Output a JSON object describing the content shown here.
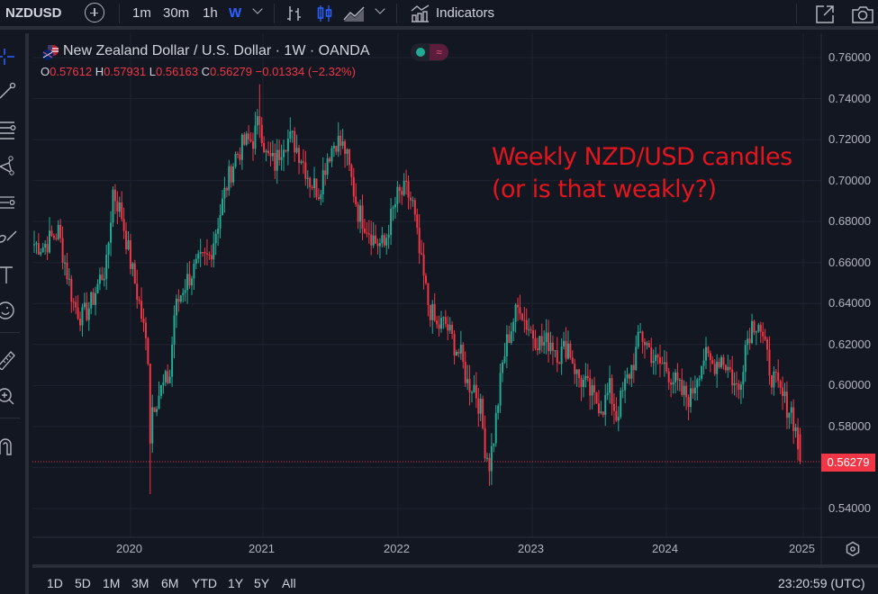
{
  "toolbar": {
    "symbol": "NZDUSD",
    "timeframes": [
      "1m",
      "30m",
      "1h",
      "W"
    ],
    "active_timeframe": "W",
    "indicators_label": "Indicators",
    "icons": [
      "search-icon",
      "add-symbol-icon",
      "bar-chart-icon",
      "candles-icon",
      "area-chart-icon",
      "indicators-icon",
      "fullscreen-icon",
      "camera-icon"
    ]
  },
  "left_tools": [
    "crosshair-icon",
    "trendline-icon",
    "fib-lines-icon",
    "pattern-icon",
    "prediction-icon",
    "brush-icon",
    "text-icon",
    "emoji-icon",
    "ruler-icon",
    "zoom-in-icon",
    "magnet-icon"
  ],
  "legend": {
    "title": "New Zealand Dollar / U.S. Dollar · 1W · OANDA",
    "o_label": "O",
    "o": "0.57612",
    "h_label": "H",
    "h": "0.57931",
    "l_label": "L",
    "l": "0.56163",
    "c_label": "C",
    "c": "0.56279",
    "change": "−0.01334 (−2.32%)",
    "badge_symbol": "≈"
  },
  "annotation": {
    "line1": "Weekly NZD/USD candles",
    "line2": "(or is that weakly?)",
    "color": "#e3161e"
  },
  "price_tag": "0.56279",
  "bottom": {
    "ranges": [
      "1D",
      "5D",
      "1M",
      "3M",
      "6M",
      "YTD",
      "1Y",
      "5Y",
      "All"
    ],
    "clock": "23:20:59 (UTC)"
  },
  "colors": {
    "background": "#131722",
    "up": "#22ab94",
    "down": "#f23645",
    "grid": "#1f2330",
    "text": "#b2b5be"
  },
  "chart_data": {
    "type": "candlestick",
    "title": "New Zealand Dollar / U.S. Dollar · 1W · OANDA",
    "xlabel": "",
    "ylabel": "",
    "ylim": [
      0.53,
      0.765
    ],
    "y_ticks": [
      "0.76000",
      "0.74000",
      "0.72000",
      "0.70000",
      "0.68000",
      "0.66000",
      "0.64000",
      "0.62000",
      "0.60000",
      "0.58000",
      "0.56279",
      "0.54000"
    ],
    "x_ticks": [
      "2020",
      "2021",
      "2022",
      "2023",
      "2024",
      "2025"
    ],
    "last_price": 0.56279,
    "grid": true,
    "waypoints": [
      [
        0,
        0.669
      ],
      [
        4,
        0.668
      ],
      [
        8,
        0.672
      ],
      [
        11,
        0.675
      ],
      [
        14,
        0.66
      ],
      [
        18,
        0.64
      ],
      [
        22,
        0.633
      ],
      [
        26,
        0.64
      ],
      [
        30,
        0.652
      ],
      [
        33,
        0.658
      ],
      [
        36,
        0.695
      ],
      [
        40,
        0.683
      ],
      [
        44,
        0.66
      ],
      [
        48,
        0.64
      ],
      [
        52,
        0.615
      ],
      [
        53,
        0.575
      ],
      [
        54,
        0.59
      ],
      [
        58,
        0.598
      ],
      [
        62,
        0.605
      ],
      [
        64,
        0.635
      ],
      [
        68,
        0.648
      ],
      [
        72,
        0.655
      ],
      [
        76,
        0.66
      ],
      [
        80,
        0.663
      ],
      [
        84,
        0.68
      ],
      [
        88,
        0.698
      ],
      [
        92,
        0.712
      ],
      [
        96,
        0.718
      ],
      [
        100,
        0.72
      ],
      [
        103,
        0.73
      ],
      [
        106,
        0.712
      ],
      [
        110,
        0.708
      ],
      [
        114,
        0.72
      ],
      [
        118,
        0.72
      ],
      [
        122,
        0.712
      ],
      [
        126,
        0.7
      ],
      [
        130,
        0.695
      ],
      [
        134,
        0.712
      ],
      [
        138,
        0.72
      ],
      [
        142,
        0.715
      ],
      [
        145,
        0.7
      ],
      [
        148,
        0.685
      ],
      [
        152,
        0.678
      ],
      [
        156,
        0.67
      ],
      [
        160,
        0.668
      ],
      [
        162,
        0.678
      ],
      [
        166,
        0.692
      ],
      [
        170,
        0.695
      ],
      [
        173,
        0.688
      ],
      [
        176,
        0.664
      ],
      [
        180,
        0.64
      ],
      [
        184,
        0.628
      ],
      [
        186,
        0.63
      ],
      [
        188,
        0.63
      ],
      [
        192,
        0.62
      ],
      [
        195,
        0.614
      ],
      [
        198,
        0.601
      ],
      [
        201,
        0.6
      ],
      [
        204,
        0.588
      ],
      [
        206,
        0.57
      ],
      [
        208,
        0.562
      ],
      [
        210,
        0.575
      ],
      [
        214,
        0.61
      ],
      [
        216,
        0.621
      ],
      [
        219,
        0.632
      ],
      [
        222,
        0.64
      ],
      [
        224,
        0.632
      ],
      [
        228,
        0.625
      ],
      [
        232,
        0.62
      ],
      [
        236,
        0.622
      ],
      [
        240,
        0.615
      ],
      [
        244,
        0.62
      ],
      [
        248,
        0.605
      ],
      [
        252,
        0.6
      ],
      [
        256,
        0.593
      ],
      [
        260,
        0.59
      ],
      [
        263,
        0.598
      ],
      [
        266,
        0.585
      ],
      [
        270,
        0.6
      ],
      [
        274,
        0.612
      ],
      [
        277,
        0.625
      ],
      [
        280,
        0.62
      ],
      [
        284,
        0.611
      ],
      [
        288,
        0.61
      ],
      [
        292,
        0.603
      ],
      [
        296,
        0.596
      ],
      [
        300,
        0.594
      ],
      [
        303,
        0.606
      ],
      [
        306,
        0.614
      ],
      [
        310,
        0.61
      ],
      [
        314,
        0.614
      ],
      [
        318,
        0.607
      ],
      [
        320,
        0.6
      ],
      [
        322,
        0.598
      ],
      [
        325,
        0.62
      ],
      [
        328,
        0.63
      ],
      [
        331,
        0.632
      ],
      [
        334,
        0.617
      ],
      [
        337,
        0.605
      ],
      [
        340,
        0.598
      ],
      [
        342,
        0.594
      ],
      [
        344,
        0.59
      ],
      [
        346,
        0.588
      ],
      [
        348,
        0.578
      ],
      [
        350,
        0.5628
      ]
    ],
    "last_candle": {
      "open": 0.57612,
      "high": 0.57931,
      "low": 0.56163,
      "close": 0.56279
    }
  }
}
